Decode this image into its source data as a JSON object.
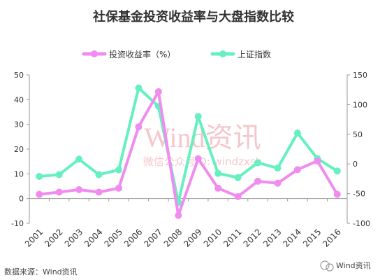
{
  "chart_data": {
    "type": "line",
    "title": "社保基金投资收益率与大盘指数比较",
    "categories": [
      "2001",
      "2002",
      "2003",
      "2004",
      "2005",
      "2006",
      "2007",
      "2008",
      "2009",
      "2010",
      "2011",
      "2012",
      "2013",
      "2014",
      "2015",
      "2016"
    ],
    "series": [
      {
        "name": "投资收益率（%）",
        "axis": "left",
        "color": "#f08cf0",
        "values": [
          1.7,
          2.6,
          3.6,
          2.6,
          4.2,
          29.0,
          43.2,
          -6.8,
          16.1,
          4.2,
          0.8,
          7.0,
          6.2,
          11.7,
          15.2,
          1.7
        ]
      },
      {
        "name": "上证指数",
        "axis": "right",
        "color": "#66f0c0",
        "values": [
          -21,
          -18,
          8,
          -18,
          -10,
          128,
          97,
          -65,
          80,
          -16,
          -23,
          2,
          -7,
          52,
          9,
          -12
        ]
      }
    ],
    "left_axis": {
      "ylim": [
        -10,
        50
      ],
      "ticks": [
        "-10",
        "0",
        "10",
        "20",
        "30",
        "40",
        "50"
      ]
    },
    "right_axis": {
      "ylim": [
        -100,
        150
      ],
      "ticks": [
        "-100",
        "-50",
        "0",
        "50",
        "100",
        "150"
      ]
    },
    "legend_position": "top",
    "grid": false
  },
  "watermark": {
    "main": "Wind资讯",
    "sub": "微信公众号ID: windzxsh"
  },
  "source_note": "数据来源：Wind资讯",
  "brand": "Wind资讯"
}
